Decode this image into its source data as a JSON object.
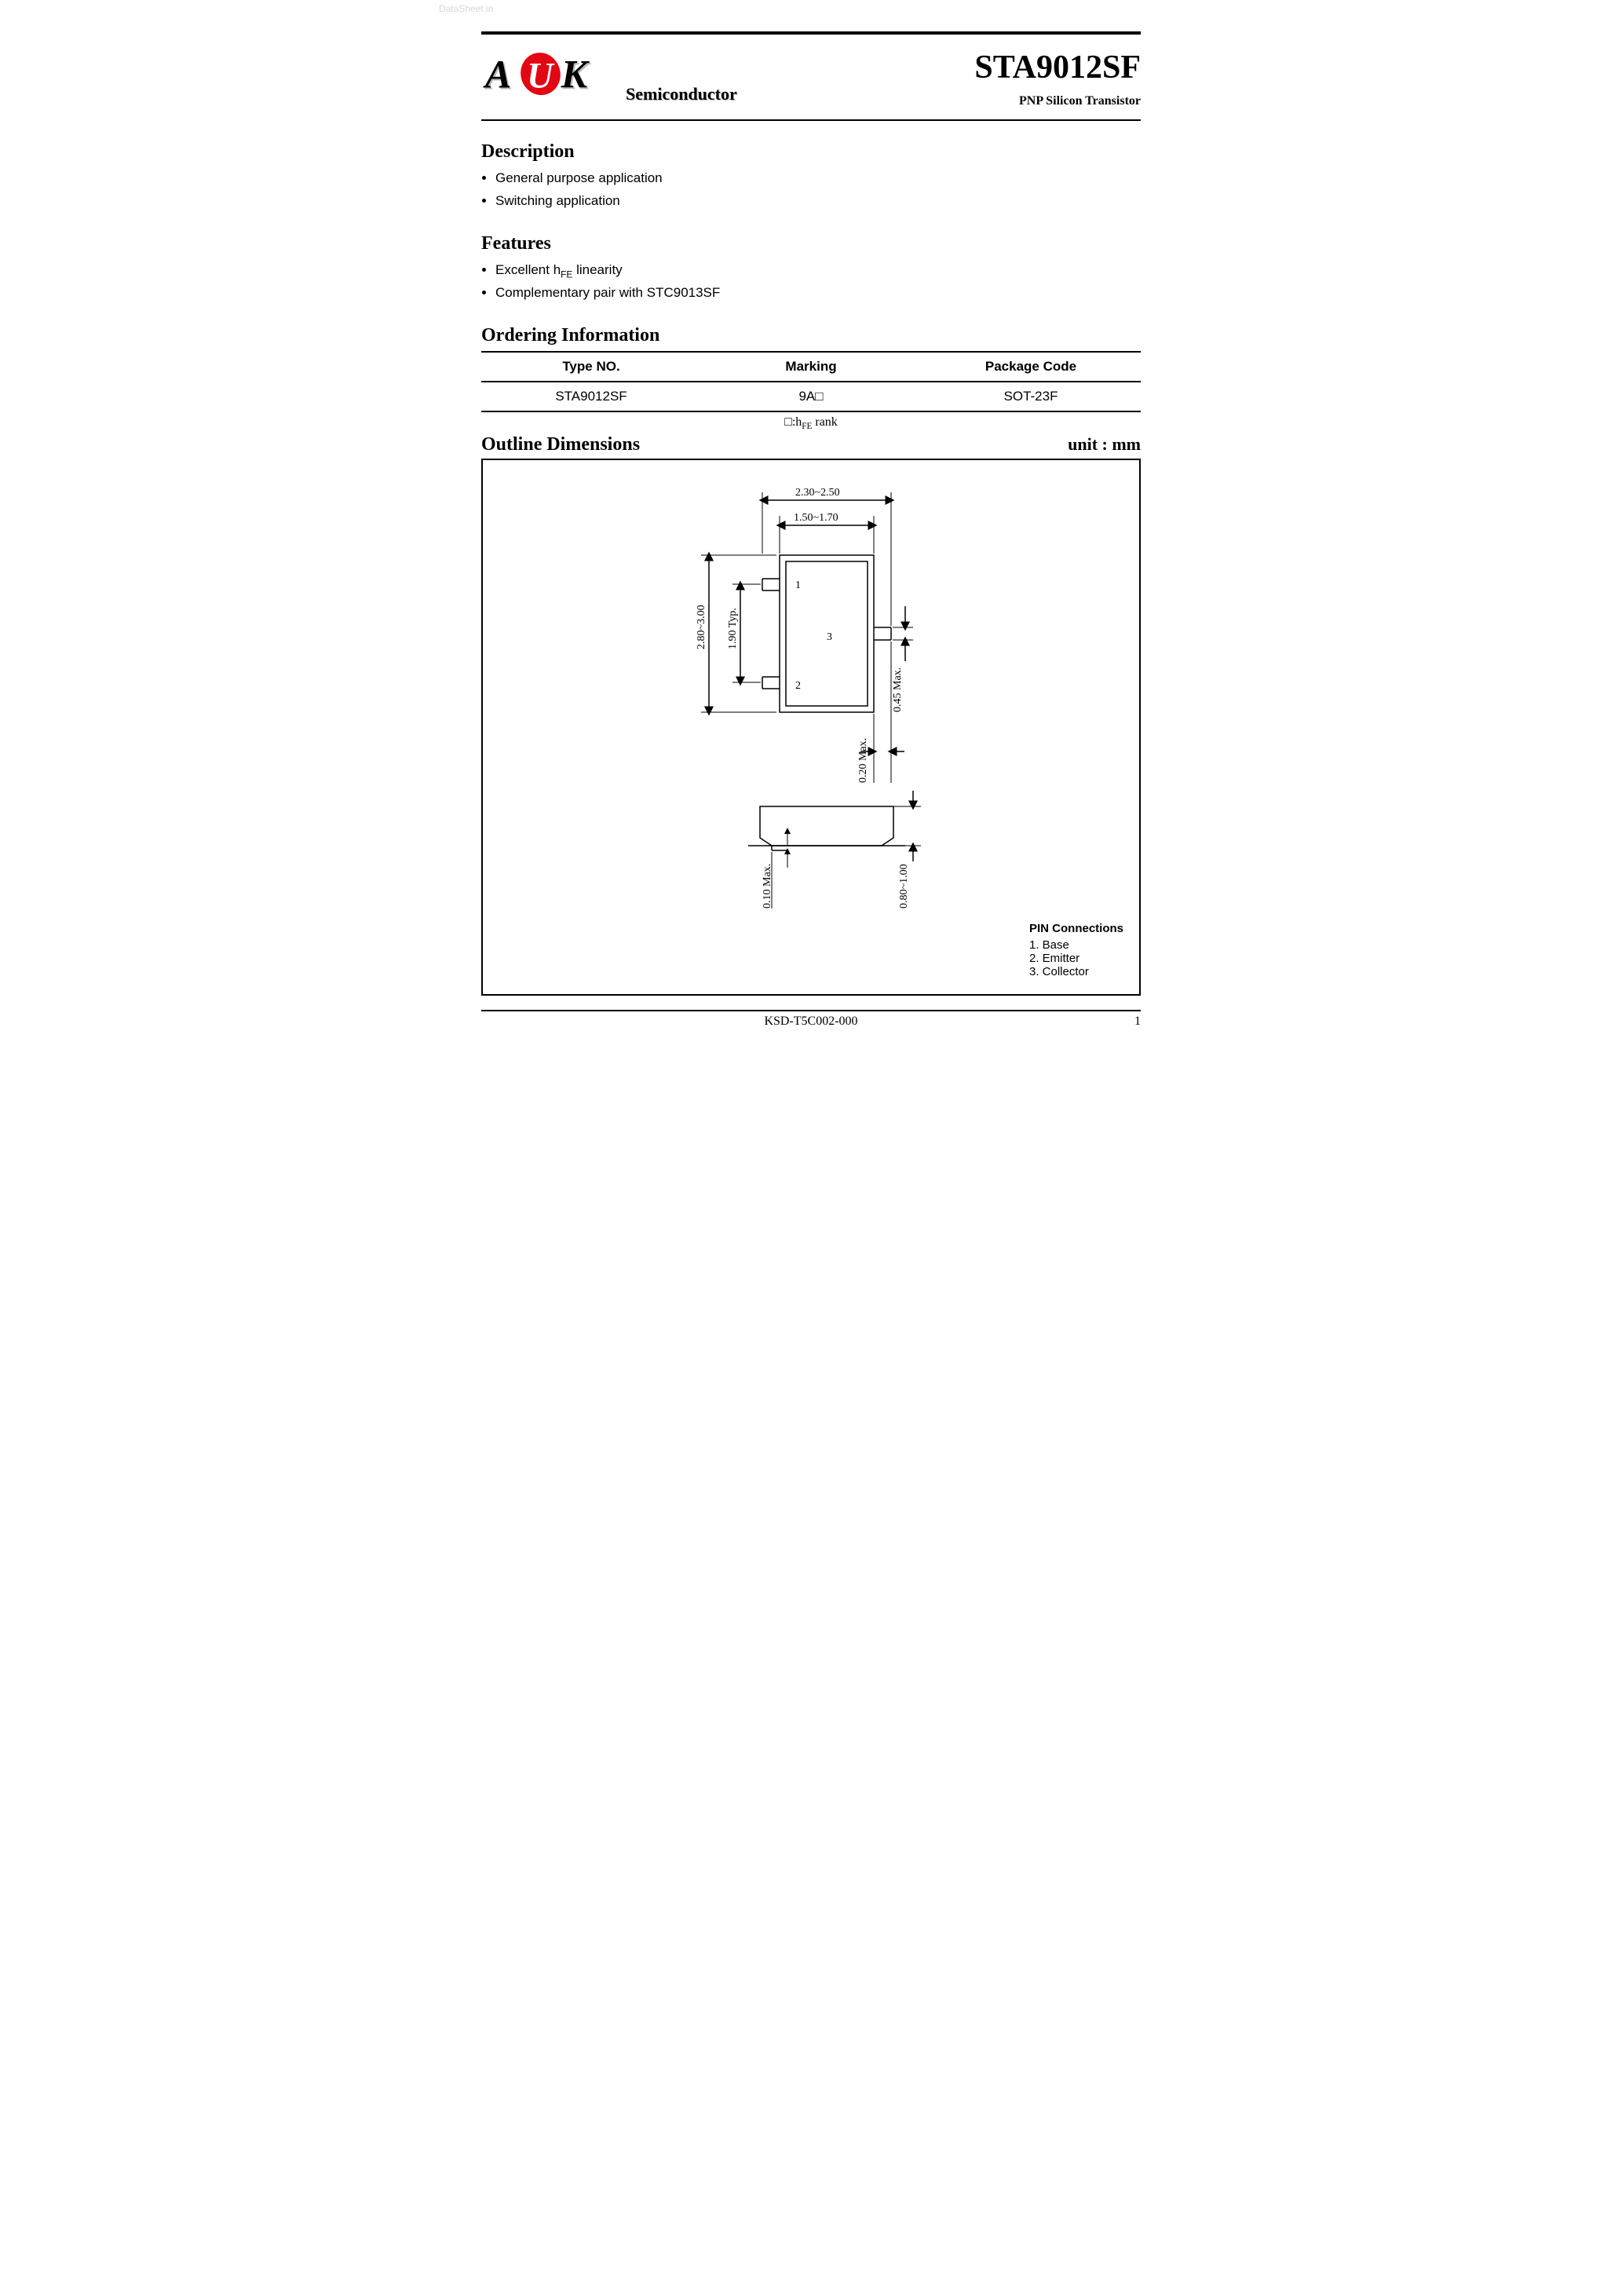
{
  "watermark": "DataSheet.in",
  "logo": {
    "letters_black": [
      "A",
      "K"
    ],
    "letter_red": "U",
    "red_color": "#e30613",
    "shadow_color": "#b9b9b9",
    "subtext": "Semiconductor"
  },
  "header": {
    "part_number": "STA9012SF",
    "subtitle": "PNP Silicon Transistor"
  },
  "description": {
    "heading": "Description",
    "items": [
      "General purpose application",
      "Switching application"
    ]
  },
  "features": {
    "heading": "Features",
    "items_html": [
      "Excellent h<span class=\"sub-fe\">FE</span> linearity",
      "Complementary pair with STC9013SF"
    ]
  },
  "ordering": {
    "heading": "Ordering Information",
    "columns": [
      "Type NO.",
      "Marking",
      "Package Code"
    ],
    "row": [
      "STA9012SF",
      "9A□",
      "SOT-23F"
    ],
    "note_html": "□:h<span class=\"sub-fe\">FE</span> rank"
  },
  "outline": {
    "heading": "Outline Dimensions",
    "unit_label": "unit : mm",
    "dims": {
      "width_outer": "2.30~2.50",
      "width_inner": "1.50~1.70",
      "height_outer": "2.80~3.00",
      "pin_pitch": "1.90 Typ.",
      "lead_width": "0.45 Max.",
      "lead_protrusion": "0.20 Max.",
      "standoff": "0.10 Max.",
      "body_height": "0.80~1.00",
      "pin_labels": [
        "1",
        "2",
        "3"
      ]
    },
    "pin_connections": {
      "title": "PIN Connections",
      "pins": [
        "1. Base",
        "2. Emitter",
        "3. Collector"
      ]
    }
  },
  "footer": {
    "doc_no": "KSD-T5C002-000",
    "page": "1"
  },
  "style": {
    "page_bg": "#ffffff",
    "text_color": "#000000",
    "rule_color": "#000000",
    "font_serif": "Times New Roman",
    "font_sans": "Verdana"
  }
}
